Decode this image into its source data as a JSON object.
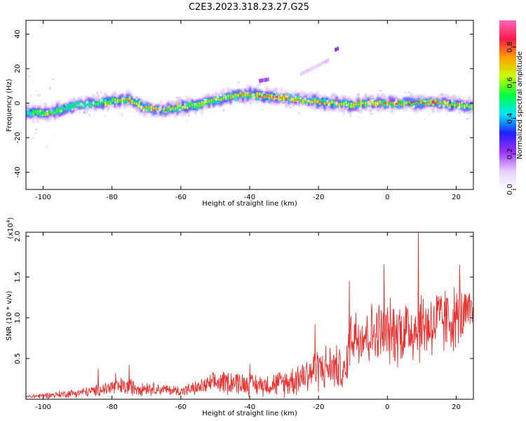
{
  "title": "C2E3.2023.318.23.27.G25",
  "chart_data": [
    {
      "type": "heatmap",
      "xlabel": "Height of straight line (km)",
      "ylabel": "Frequency (Hz)",
      "xlim": [
        -105,
        25
      ],
      "ylim": [
        -50,
        48
      ],
      "xticks": [
        -100,
        -80,
        -60,
        -40,
        -20,
        0,
        20
      ],
      "yticks": [
        -40,
        -20,
        0,
        20,
        40
      ],
      "colorbar": {
        "label": "Normalized spectral amplitude",
        "range": [
          0,
          0.95
        ],
        "ticks": [
          "0.0",
          "0.2",
          "0.4",
          "0.6",
          "0.8"
        ],
        "colors": [
          "#ffffff",
          "#e6ccff",
          "#9b30ff",
          "#2020ff",
          "#00e5ff",
          "#00ff40",
          "#c8ff00",
          "#ffa000",
          "#ff1a4a",
          "#ff66bb"
        ]
      },
      "ridge": {
        "x": [
          -105,
          -100,
          -95,
          -90,
          -85,
          -80,
          -75,
          -70,
          -65,
          -60,
          -55,
          -50,
          -45,
          -40,
          -35,
          -30,
          -25,
          -20,
          -15,
          -10,
          -5,
          0,
          5,
          10,
          15,
          20,
          24
        ],
        "y": [
          -5,
          -6,
          -4,
          -1,
          0,
          1,
          2,
          -3,
          -4,
          -2,
          -1,
          2,
          4,
          5,
          4,
          3,
          2,
          1,
          0,
          -1,
          0,
          0,
          0,
          0,
          0,
          -1,
          -2
        ],
        "peak_amplitude": [
          0.5,
          0.6,
          0.55,
          0.5,
          0.55,
          0.6,
          0.75,
          0.7,
          0.9,
          0.6,
          0.65,
          0.7,
          0.7,
          0.8,
          0.85,
          0.8,
          0.75,
          0.8,
          0.7,
          0.7,
          0.75,
          0.8,
          0.8,
          0.85,
          0.8,
          0.75,
          0.6
        ]
      },
      "secondary_features": [
        {
          "x": [
            -37,
            -34
          ],
          "y": [
            13,
            14
          ],
          "amplitude": 0.2
        },
        {
          "x": [
            -25,
            -17
          ],
          "y": [
            17,
            25
          ],
          "amplitude": 0.1
        },
        {
          "x": [
            -15,
            -14
          ],
          "y": [
            31,
            32
          ],
          "amplitude": 0.2
        }
      ]
    },
    {
      "type": "line",
      "xlabel": "Height of straight line (km)",
      "ylabel": "SNR (10 * v/v)",
      "y_multiplier": "(x10",
      "y_multiplier_exp": "4",
      "y_multiplier_close": ")",
      "xlim": [
        -105,
        25
      ],
      "ylim": [
        0,
        2.05
      ],
      "xticks": [
        -100,
        -80,
        -60,
        -40,
        -20,
        0,
        20
      ],
      "yticks": [
        "0.5",
        "1.0",
        "1.5",
        "2.0"
      ],
      "color": "#e83232",
      "envelope": {
        "x": [
          -105,
          -95,
          -85,
          -80,
          -75,
          -70,
          -65,
          -60,
          -55,
          -50,
          -45,
          -40,
          -35,
          -30,
          -25,
          -20,
          -15,
          -12,
          -11,
          -5,
          0,
          5,
          10,
          15,
          20,
          25
        ],
        "mean": [
          0.03,
          0.06,
          0.1,
          0.15,
          0.15,
          0.14,
          0.12,
          0.1,
          0.14,
          0.2,
          0.22,
          0.18,
          0.18,
          0.2,
          0.28,
          0.38,
          0.4,
          0.3,
          0.8,
          0.8,
          0.82,
          0.85,
          0.9,
          0.95,
          1.0,
          1.05
        ],
        "spread": [
          0.02,
          0.04,
          0.06,
          0.1,
          0.1,
          0.08,
          0.06,
          0.06,
          0.08,
          0.12,
          0.14,
          0.12,
          0.12,
          0.15,
          0.2,
          0.25,
          0.25,
          0.2,
          0.35,
          0.35,
          0.35,
          0.4,
          0.4,
          0.4,
          0.35,
          0.25
        ]
      },
      "peaks": [
        {
          "x": -84,
          "y": 0.37
        },
        {
          "x": -79,
          "y": 0.32
        },
        {
          "x": -75,
          "y": 0.42
        },
        {
          "x": -40,
          "y": 0.43
        },
        {
          "x": -21,
          "y": 0.92
        },
        {
          "x": -11,
          "y": 1.45
        },
        {
          "x": -1,
          "y": 1.65
        },
        {
          "x": 9,
          "y": 2.05
        },
        {
          "x": 21,
          "y": 1.65
        }
      ]
    }
  ]
}
